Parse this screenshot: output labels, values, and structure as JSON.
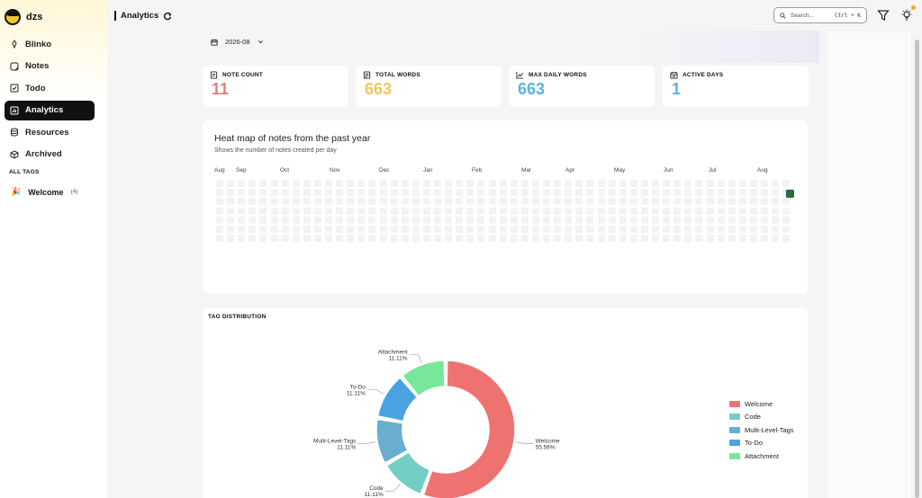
{
  "user": {
    "name": "dzs"
  },
  "sidebar": {
    "items": [
      {
        "label": "Blinko",
        "icon": "blinko-icon",
        "active": false
      },
      {
        "label": "Notes",
        "icon": "notes-icon",
        "active": false
      },
      {
        "label": "Todo",
        "icon": "todo-icon",
        "active": false
      },
      {
        "label": "Analytics",
        "icon": "analytics-icon",
        "active": true
      },
      {
        "label": "Resources",
        "icon": "resources-icon",
        "active": false
      },
      {
        "label": "Archived",
        "icon": "archived-icon",
        "active": false
      }
    ],
    "tags_title": "ALL TAGS",
    "tags": [
      {
        "emoji": "🎉",
        "label": "Welcome",
        "count": "(4)"
      }
    ]
  },
  "header": {
    "title": "Analytics",
    "search_placeholder": "Search...",
    "search_shortcut": "Ctrl + K"
  },
  "filter": {
    "month": "2026-08"
  },
  "stats": [
    {
      "label": "NOTE COUNT",
      "value": "11",
      "color": "#e07f7f"
    },
    {
      "label": "TOTAL WORDS",
      "value": "663",
      "color": "#f2c65a"
    },
    {
      "label": "MAX DAILY WORDS",
      "value": "663",
      "color": "#5cb3de"
    },
    {
      "label": "ACTIVE DAYS",
      "value": "1",
      "color": "#5cb3de"
    }
  ],
  "heatmap": {
    "title": "Heat map of notes from the past year",
    "subtitle": "Shows the number of notes created per day",
    "months": [
      "Aug",
      "Sep",
      "Oct",
      "Nov",
      "Dec",
      "Jan",
      "Feb",
      "Mar",
      "Apr",
      "May",
      "Jun",
      "Jul",
      "Aug"
    ],
    "active_color": "#2f6b3a"
  },
  "chart_data": {
    "type": "pie",
    "title": "TAG DISTRIBUTION",
    "donut": true,
    "slices": [
      {
        "label": "Welcome",
        "value": 55.56,
        "pct_label": "55.56%",
        "color": "#ee7370"
      },
      {
        "label": "Code",
        "value": 11.11,
        "pct_label": "11.11%",
        "color": "#73cec4"
      },
      {
        "label": "Multi-Level-Tags",
        "value": 11.11,
        "pct_label": "11.11%",
        "color": "#6aaecf"
      },
      {
        "label": "To-Do",
        "value": 11.11,
        "pct_label": "11.11%",
        "color": "#4aa3e0"
      },
      {
        "label": "Attachment",
        "value": 11.11,
        "pct_label": "11.11%",
        "color": "#79e79a"
      }
    ],
    "legend_position": "right"
  }
}
